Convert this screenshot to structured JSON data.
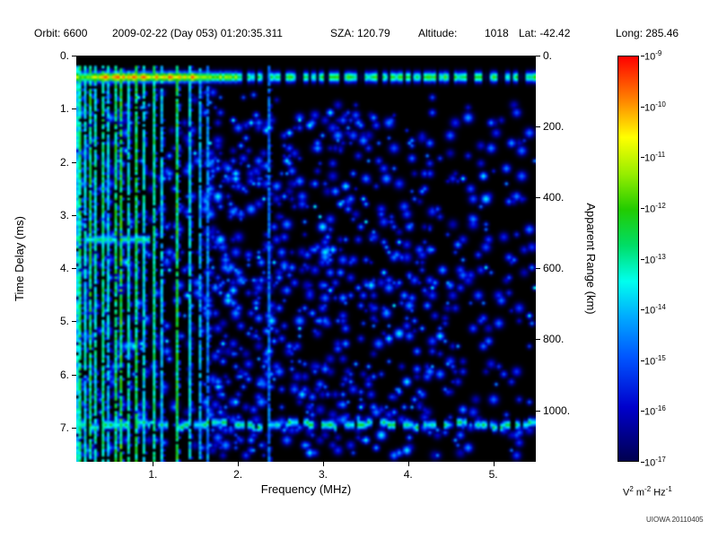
{
  "header": {
    "orbit": "Orbit: 6600",
    "datetime": "2009-02-22 (Day 053) 01:20:35.311",
    "sza": "SZA: 120.79",
    "altitude_label": "Altitude:",
    "altitude_value": "1018",
    "lat": "Lat: -42.42",
    "long": "Long: 285.46"
  },
  "watermark": "UIOWA 20110405",
  "chart_data": {
    "type": "heatmap",
    "xlabel": "Frequency (MHz)",
    "ylabel_left": "Time Delay (ms)",
    "ylabel_right": "Apparent Range (km)",
    "x_range_mhz": [
      0.1,
      5.5
    ],
    "y_range_ms": [
      0,
      7.64
    ],
    "km_per_ms": 149.9,
    "x_ticks": [
      {
        "f": 1,
        "label": "1."
      },
      {
        "f": 2,
        "label": "2."
      },
      {
        "f": 3,
        "label": "3."
      },
      {
        "f": 4,
        "label": "4."
      },
      {
        "f": 5,
        "label": "5."
      }
    ],
    "y_ticks_left": [
      {
        "d": 0,
        "label": "0."
      },
      {
        "d": 1,
        "label": "1."
      },
      {
        "d": 2,
        "label": "2."
      },
      {
        "d": 3,
        "label": "3."
      },
      {
        "d": 4,
        "label": "4."
      },
      {
        "d": 5,
        "label": "5."
      },
      {
        "d": 6,
        "label": "6."
      },
      {
        "d": 7,
        "label": "7."
      }
    ],
    "y_ticks_right": [
      {
        "km": 0,
        "label": "0."
      },
      {
        "km": 200,
        "label": "200."
      },
      {
        "km": 400,
        "label": "400."
      },
      {
        "km": 600,
        "label": "600."
      },
      {
        "km": 800,
        "label": "800."
      },
      {
        "km": 1000,
        "label": "1000."
      }
    ],
    "colorbar": {
      "ticks": [
        {
          "base": "10",
          "exp": "-9"
        },
        {
          "base": "10",
          "exp": "-10"
        },
        {
          "base": "10",
          "exp": "-11"
        },
        {
          "base": "10",
          "exp": "-12"
        },
        {
          "base": "10",
          "exp": "-13"
        },
        {
          "base": "10",
          "exp": "-14"
        },
        {
          "base": "10",
          "exp": "-15"
        },
        {
          "base": "10",
          "exp": "-16"
        },
        {
          "base": "10",
          "exp": "-17"
        }
      ],
      "unit_parts": [
        [
          "V",
          "2"
        ],
        [
          "m",
          "-2"
        ],
        [
          "Hz",
          "-1"
        ]
      ]
    },
    "colormap": [
      [
        0.0,
        "#000000"
      ],
      [
        0.1,
        "#00004f"
      ],
      [
        0.22,
        "#0000cc"
      ],
      [
        0.33,
        "#0055ff"
      ],
      [
        0.42,
        "#00aaff"
      ],
      [
        0.5,
        "#00ffee"
      ],
      [
        0.58,
        "#00dd66"
      ],
      [
        0.66,
        "#22cc00"
      ],
      [
        0.74,
        "#99ee00"
      ],
      [
        0.82,
        "#ffff00"
      ],
      [
        0.9,
        "#ff8800"
      ],
      [
        1.0,
        "#ff0000"
      ]
    ],
    "features": {
      "seed": 20110405,
      "grid": {
        "w": 180,
        "h": 160
      },
      "surface_echo": {
        "delay_ms": 0.38,
        "sigma_ms": 0.07,
        "amp_low": 0.72,
        "amp_high": 0.6,
        "peak_freq_range": [
          0.3,
          1.55
        ],
        "dash_freq_start_mhz": 2.0
      },
      "bottom_echo": {
        "delay_ms": 6.92,
        "sigma_ms": 0.06,
        "amp": 0.54
      },
      "partial_band": {
        "delay_ms": 3.45,
        "sigma_ms": 0.055,
        "freq_range": [
          0.12,
          0.95
        ],
        "amp": 0.55
      },
      "harmonic_stripes": [
        {
          "f": 0.13,
          "a": 0.5
        },
        {
          "f": 0.16,
          "a": 0.6
        },
        {
          "f": 0.21,
          "a": 0.52
        },
        {
          "f": 0.27,
          "a": 0.62
        },
        {
          "f": 0.33,
          "a": 0.55
        },
        {
          "f": 0.4,
          "a": 0.6
        },
        {
          "f": 0.47,
          "a": 0.5
        },
        {
          "f": 0.55,
          "a": 0.62
        },
        {
          "f": 0.63,
          "a": 0.66
        },
        {
          "f": 0.72,
          "a": 0.55
        },
        {
          "f": 0.81,
          "a": 0.62
        },
        {
          "f": 0.9,
          "a": 0.52
        },
        {
          "f": 1.0,
          "a": 0.58
        },
        {
          "f": 1.1,
          "a": 0.48
        },
        {
          "f": 1.3,
          "a": 0.64
        },
        {
          "f": 1.43,
          "a": 0.5
        },
        {
          "f": 1.55,
          "a": 0.44
        },
        {
          "f": 1.66,
          "a": 0.4
        },
        {
          "f": 2.35,
          "a": 0.38
        }
      ],
      "speckle": {
        "count": 2000,
        "amp_min": 0.2,
        "amp_max": 0.42,
        "bright_fraction": 0.06,
        "bright_amp": 0.5,
        "min_delay_ms": 0.65,
        "gap_below_delay_ms": 1.05,
        "gap_freq_start_mhz": 1.8
      }
    }
  }
}
